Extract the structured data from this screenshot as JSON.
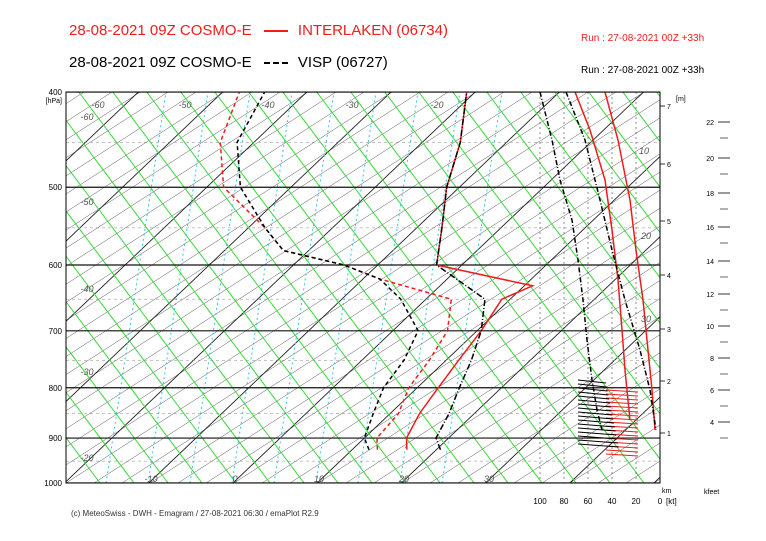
{
  "header": {
    "line1_left": "28-08-2021 09Z COSMO-E",
    "line1_station": "INTERLAKEN (06734)",
    "line1_run": "Run : 27-08-2021 00Z +33h",
    "line2_left": "28-08-2021 09Z COSMO-E",
    "line2_station": "VISP (06727)",
    "line2_run": "Run : 27-08-2021 00Z +33h"
  },
  "footer": "(c) MeteoSwiss - DWH - Emagram / 27-08-2021 06:30 / emaPlot R2.9",
  "colors": {
    "red": "#ee1c1c",
    "black": "#000000",
    "green": "#3bd63b",
    "cyan": "#2fc5ee",
    "grid": "#000000"
  },
  "chart_data": {
    "type": "line",
    "pressure_axis_label": "[hPa]",
    "pressure_ticks": [
      "400",
      "500",
      "600",
      "700",
      "800",
      "900",
      "1000"
    ],
    "pressure_tick_values": [
      400,
      500,
      600,
      700,
      800,
      900,
      1000
    ],
    "temperature_labels": [
      "-60",
      "-50",
      "-40",
      "-30",
      "-20",
      "-60",
      "-50",
      "-40",
      "-30",
      "-20",
      "-10",
      "0",
      "10",
      "20",
      "30"
    ],
    "height_axis_label": "[m]",
    "height_km_ticks": [
      "1",
      "2",
      "3",
      "4",
      "5",
      "6",
      "7"
    ],
    "height_km_values": [
      1,
      2,
      3,
      4,
      5,
      6,
      7
    ],
    "km_label": "km",
    "kfeet_label": "kfeet",
    "kfeet_ticks": [
      "4",
      "6",
      "8",
      "10",
      "12",
      "14",
      "16",
      "18",
      "20",
      "22"
    ],
    "kfeet_values": [
      4,
      6,
      8,
      10,
      12,
      14,
      16,
      18,
      20,
      22
    ],
    "wind_axis_ticks": [
      "100",
      "80",
      "60",
      "40",
      "20",
      "0"
    ],
    "wind_axis_values": [
      100,
      80,
      60,
      40,
      20,
      0
    ],
    "wind_axis_unit": "[kt]",
    "wind_speed_labels": [
      "10",
      "20",
      "30"
    ],
    "series": [
      {
        "name": "INTERLAKEN (06734)",
        "station": "interlaken",
        "temperature": [
          [
            925,
            16.5
          ],
          [
            900,
            15.0
          ],
          [
            850,
            13.5
          ],
          [
            800,
            12.5
          ],
          [
            750,
            11.5
          ],
          [
            700,
            10.5
          ],
          [
            650,
            9.0
          ],
          [
            630,
            11.0
          ],
          [
            600,
            -3.0
          ],
          [
            550,
            -7.0
          ],
          [
            500,
            -11.5
          ],
          [
            450,
            -15.5
          ],
          [
            400,
            -21.0
          ]
        ],
        "dewpoint": [
          [
            925,
            13.0
          ],
          [
            900,
            11.5
          ],
          [
            850,
            11.0
          ],
          [
            800,
            9.0
          ],
          [
            750,
            8.0
          ],
          [
            700,
            6.5
          ],
          [
            650,
            3.0
          ],
          [
            620,
            -8.0
          ],
          [
            600,
            -14.0
          ],
          [
            580,
            -23.0
          ],
          [
            550,
            -28.0
          ],
          [
            500,
            -38.0
          ],
          [
            450,
            -44.0
          ],
          [
            400,
            -48.0
          ]
        ]
      },
      {
        "name": "VISP (06727)",
        "station": "visp",
        "temperature": [
          [
            925,
            20.5
          ],
          [
            900,
            18.5
          ],
          [
            850,
            17.0
          ],
          [
            800,
            15.0
          ],
          [
            750,
            13.0
          ],
          [
            700,
            10.5
          ],
          [
            650,
            7.0
          ],
          [
            600,
            -3.0
          ],
          [
            550,
            -7.0
          ],
          [
            500,
            -11.5
          ],
          [
            450,
            -15.5
          ],
          [
            400,
            -21.0
          ]
        ],
        "dewpoint": [
          [
            925,
            12.0
          ],
          [
            900,
            10.0
          ],
          [
            850,
            8.0
          ],
          [
            800,
            6.0
          ],
          [
            750,
            5.0
          ],
          [
            700,
            3.0
          ],
          [
            650,
            -3.0
          ],
          [
            620,
            -8.0
          ],
          [
            600,
            -14.0
          ],
          [
            580,
            -23.0
          ],
          [
            550,
            -28.0
          ],
          [
            500,
            -36.0
          ],
          [
            450,
            -42.0
          ],
          [
            400,
            -45.0
          ]
        ]
      }
    ]
  }
}
